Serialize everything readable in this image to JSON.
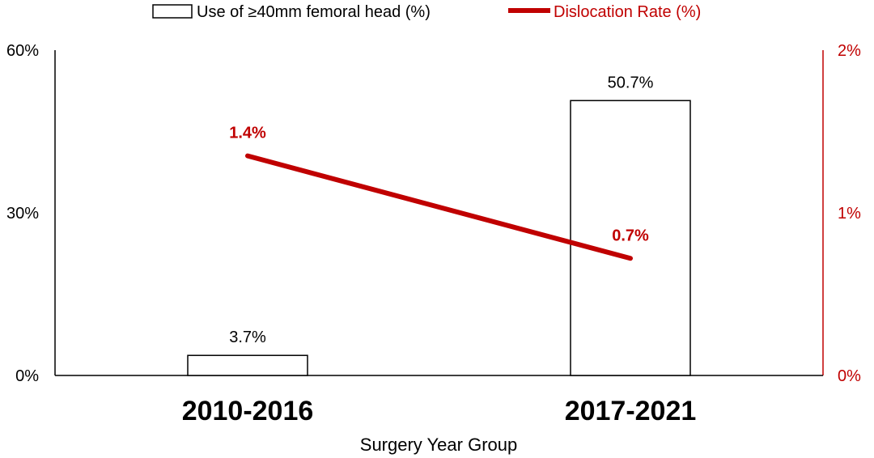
{
  "chart_data": {
    "type": "bar",
    "categories": [
      "2010-2016",
      "2017-2021"
    ],
    "xlabel": "Surgery Year Group",
    "series": [
      {
        "name": "Use of ≥40mm femoral head (%)",
        "type": "bar",
        "axis": "left",
        "values": [
          3.7,
          50.7
        ],
        "labels": [
          "3.7%",
          "50.7%"
        ],
        "color": "#000000",
        "fill": "#ffffff"
      },
      {
        "name": "Dislocation Rate (%)",
        "type": "line",
        "axis": "right",
        "values": [
          1.35,
          0.72
        ],
        "labels": [
          "1.4%",
          "0.7%"
        ],
        "color": "#c00000"
      }
    ],
    "y_left": {
      "ylim": [
        0,
        60
      ],
      "ticks": [
        "0%",
        "30%",
        "60%"
      ],
      "tick_values": [
        0,
        30,
        60
      ]
    },
    "y_right": {
      "ylim": [
        0,
        2
      ],
      "ticks": [
        "0%",
        "1%",
        "2%"
      ],
      "tick_values": [
        0,
        1,
        2
      ],
      "color": "#c00000"
    },
    "legend_position": "top",
    "grid": false
  }
}
